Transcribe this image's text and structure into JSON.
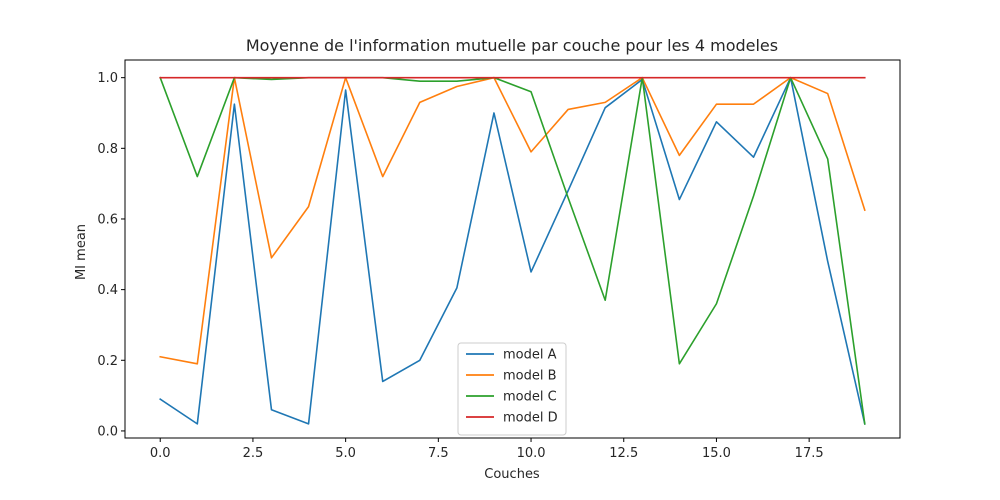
{
  "chart_data": {
    "type": "line",
    "title": "Moyenne de l'information mutuelle par couche pour les 4 modeles",
    "xlabel": "Couches",
    "ylabel": "MI mean",
    "xlim": [
      -0.95,
      19.95
    ],
    "ylim": [
      -0.02,
      1.05
    ],
    "xticks": [
      0,
      2.5,
      5,
      7.5,
      10,
      12.5,
      15,
      17.5
    ],
    "xtick_labels": [
      "0.0",
      "2.5",
      "5.0",
      "7.5",
      "10.0",
      "12.5",
      "15.0",
      "17.5"
    ],
    "yticks": [
      0,
      0.2,
      0.4,
      0.6,
      0.8,
      1.0
    ],
    "ytick_labels": [
      "0.0",
      "0.2",
      "0.4",
      "0.6",
      "0.8",
      "1.0"
    ],
    "grid": false,
    "legend_position": "bottom-center",
    "x": [
      0,
      1,
      2,
      3,
      4,
      5,
      6,
      7,
      8,
      9,
      10,
      11,
      12,
      13,
      14,
      15,
      16,
      17,
      18,
      19
    ],
    "series": [
      {
        "name": "model A",
        "color": "#1f77b4",
        "values": [
          0.09,
          0.02,
          0.925,
          0.06,
          0.02,
          0.965,
          0.14,
          0.2,
          0.405,
          0.9,
          0.45,
          0.68,
          0.915,
          0.995,
          0.655,
          0.875,
          0.775,
          1.0,
          0.48,
          0.02
        ]
      },
      {
        "name": "model B",
        "color": "#ff7f0e",
        "values": [
          0.21,
          0.19,
          1.0,
          0.49,
          0.635,
          1.0,
          0.72,
          0.93,
          0.975,
          1.0,
          0.79,
          0.91,
          0.93,
          1.0,
          0.78,
          0.925,
          0.925,
          1.0,
          0.955,
          0.625
        ]
      },
      {
        "name": "model C",
        "color": "#2ca02c",
        "values": [
          1.0,
          0.72,
          1.0,
          0.995,
          1.0,
          1.0,
          1.0,
          0.99,
          0.99,
          1.0,
          0.96,
          0.66,
          0.37,
          1.0,
          0.19,
          0.36,
          0.665,
          1.0,
          0.77,
          0.02
        ]
      },
      {
        "name": "model D",
        "color": "#d62728",
        "values": [
          1.0,
          1.0,
          1.0,
          1.0,
          1.0,
          1.0,
          1.0,
          1.0,
          1.0,
          1.0,
          1.0,
          1.0,
          1.0,
          1.0,
          1.0,
          1.0,
          1.0,
          1.0,
          1.0,
          1.0
        ]
      }
    ]
  }
}
